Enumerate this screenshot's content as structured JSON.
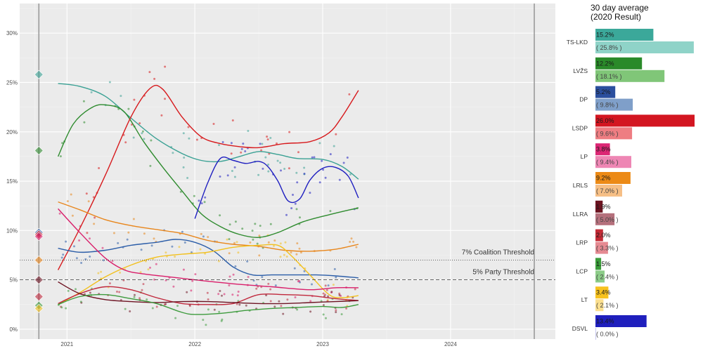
{
  "chart_data": [
    {
      "type": "scatter",
      "title": "",
      "xlabel": "",
      "ylabel": "",
      "x_ticks": [
        "2021",
        "2022",
        "2023",
        "2024"
      ],
      "xlim": [
        2020.63,
        2024.82
      ],
      "y_ticks": [
        "0%",
        "5%",
        "10%",
        "15%",
        "20%",
        "25%",
        "30%"
      ],
      "ylim": [
        -1,
        33
      ],
      "election_date": 2020.78,
      "election_results": {
        "TS-LKD": 25.8,
        "LVŽS": 18.1,
        "DP": 9.8,
        "LSDP": 9.6,
        "LP": 9.4,
        "LRLS": 7.0,
        "LLRA": 5.0,
        "LRP": 3.3,
        "LCP": 2.4,
        "LT": 2.1
      },
      "thresholds": [
        {
          "label": "7% Coalition Threshold",
          "value": 7,
          "style": "dotted"
        },
        {
          "label": "5% Party Threshold",
          "value": 5,
          "style": "dashed"
        }
      ],
      "series": [
        {
          "name": "TS-LKD",
          "color": "#3aa194",
          "points": [
            [
              2020.93,
              24.9
            ],
            [
              2021.1,
              24.6
            ],
            [
              2021.3,
              23.6
            ],
            [
              2021.5,
              21.4
            ],
            [
              2021.7,
              19.3
            ],
            [
              2021.9,
              17.8
            ],
            [
              2022.05,
              17.1
            ],
            [
              2022.2,
              17.0
            ],
            [
              2022.35,
              17.5
            ],
            [
              2022.5,
              18.0
            ],
            [
              2022.65,
              17.7
            ],
            [
              2022.8,
              17.3
            ],
            [
              2023.0,
              17.2
            ],
            [
              2023.15,
              16.5
            ],
            [
              2023.28,
              15.2
            ]
          ]
        },
        {
          "name": "LVŽS",
          "color": "#2e8b2e",
          "points": [
            [
              2020.93,
              17.5
            ],
            [
              2021.05,
              20.8
            ],
            [
              2021.2,
              22.5
            ],
            [
              2021.32,
              22.7
            ],
            [
              2021.45,
              22.0
            ],
            [
              2021.6,
              19.0
            ],
            [
              2021.75,
              16.4
            ],
            [
              2021.9,
              14.0
            ],
            [
              2022.05,
              11.7
            ],
            [
              2022.2,
              10.4
            ],
            [
              2022.35,
              9.6
            ],
            [
              2022.5,
              9.3
            ],
            [
              2022.65,
              9.8
            ],
            [
              2022.85,
              10.9
            ],
            [
              2023.05,
              11.6
            ],
            [
              2023.28,
              12.3
            ]
          ]
        },
        {
          "name": "LSDP",
          "color": "#d7191c",
          "points": [
            [
              2020.93,
              6.0
            ],
            [
              2021.1,
              10.2
            ],
            [
              2021.3,
              15.6
            ],
            [
              2021.5,
              21.5
            ],
            [
              2021.65,
              24.4
            ],
            [
              2021.75,
              24.3
            ],
            [
              2021.9,
              21.5
            ],
            [
              2022.05,
              19.5
            ],
            [
              2022.2,
              18.8
            ],
            [
              2022.35,
              18.5
            ],
            [
              2022.5,
              18.4
            ],
            [
              2022.7,
              18.8
            ],
            [
              2022.9,
              19.0
            ],
            [
              2023.05,
              19.9
            ],
            [
              2023.15,
              21.5
            ],
            [
              2023.28,
              24.2
            ]
          ]
        },
        {
          "name": "DSVL",
          "color": "#1f1fc0",
          "points": [
            [
              2022.0,
              11.2
            ],
            [
              2022.1,
              14.8
            ],
            [
              2022.2,
              17.3
            ],
            [
              2022.3,
              17.1
            ],
            [
              2022.4,
              16.8
            ],
            [
              2022.5,
              17.0
            ],
            [
              2022.57,
              16.5
            ],
            [
              2022.65,
              15.0
            ],
            [
              2022.73,
              13.0
            ],
            [
              2022.82,
              13.2
            ],
            [
              2022.9,
              15.1
            ],
            [
              2023.0,
              16.3
            ],
            [
              2023.1,
              16.4
            ],
            [
              2023.2,
              15.5
            ],
            [
              2023.28,
              13.3
            ]
          ]
        },
        {
          "name": "LRLS",
          "color": "#e8861c",
          "points": [
            [
              2020.93,
              12.9
            ],
            [
              2021.1,
              12.1
            ],
            [
              2021.3,
              11.1
            ],
            [
              2021.5,
              10.5
            ],
            [
              2021.7,
              10.1
            ],
            [
              2021.9,
              9.7
            ],
            [
              2022.1,
              9.0
            ],
            [
              2022.3,
              8.6
            ],
            [
              2022.5,
              8.4
            ],
            [
              2022.7,
              8.0
            ],
            [
              2022.9,
              7.9
            ],
            [
              2023.1,
              8.1
            ],
            [
              2023.28,
              8.6
            ]
          ]
        },
        {
          "name": "DP",
          "color": "#2b5da8",
          "points": [
            [
              2020.93,
              8.2
            ],
            [
              2021.1,
              7.8
            ],
            [
              2021.3,
              8.0
            ],
            [
              2021.5,
              8.5
            ],
            [
              2021.7,
              8.8
            ],
            [
              2021.85,
              9.1
            ],
            [
              2022.0,
              8.8
            ],
            [
              2022.15,
              7.9
            ],
            [
              2022.3,
              6.3
            ],
            [
              2022.45,
              5.5
            ],
            [
              2022.6,
              5.5
            ],
            [
              2022.75,
              5.5
            ],
            [
              2022.95,
              5.5
            ],
            [
              2023.1,
              5.4
            ],
            [
              2023.28,
              5.2
            ]
          ]
        },
        {
          "name": "LT",
          "color": "#f2c01e",
          "points": [
            [
              2020.93,
              2.5
            ],
            [
              2021.1,
              3.7
            ],
            [
              2021.3,
              5.3
            ],
            [
              2021.5,
              6.5
            ],
            [
              2021.7,
              7.3
            ],
            [
              2021.9,
              7.6
            ],
            [
              2022.1,
              7.8
            ],
            [
              2022.3,
              8.3
            ],
            [
              2022.5,
              8.5
            ],
            [
              2022.65,
              8.5
            ],
            [
              2022.75,
              7.5
            ],
            [
              2022.9,
              5.5
            ],
            [
              2023.05,
              3.5
            ],
            [
              2023.15,
              3.2
            ],
            [
              2023.28,
              3.4
            ]
          ]
        },
        {
          "name": "LP",
          "color": "#d91e6a",
          "points": [
            [
              2020.93,
              12.2
            ],
            [
              2021.1,
              9.8
            ],
            [
              2021.3,
              7.2
            ],
            [
              2021.45,
              6.0
            ],
            [
              2021.6,
              5.6
            ],
            [
              2021.8,
              5.3
            ],
            [
              2022.0,
              5.0
            ],
            [
              2022.3,
              4.6
            ],
            [
              2022.6,
              4.3
            ],
            [
              2022.9,
              4.0
            ],
            [
              2023.1,
              4.2
            ],
            [
              2023.28,
              4.2
            ]
          ]
        },
        {
          "name": "LRP",
          "color": "#c0283c",
          "points": [
            [
              2020.93,
              2.6
            ],
            [
              2021.1,
              3.6
            ],
            [
              2021.3,
              4.3
            ],
            [
              2021.5,
              4.0
            ],
            [
              2021.7,
              3.2
            ],
            [
              2021.9,
              2.6
            ],
            [
              2022.1,
              2.5
            ],
            [
              2022.3,
              2.6
            ],
            [
              2022.5,
              3.5
            ],
            [
              2022.7,
              3.5
            ],
            [
              2022.9,
              3.4
            ],
            [
              2023.1,
              3.1
            ],
            [
              2023.28,
              2.9
            ]
          ]
        },
        {
          "name": "LLRA",
          "color": "#6e1423",
          "points": [
            [
              2020.93,
              4.8
            ],
            [
              2021.1,
              3.6
            ],
            [
              2021.3,
              3.0
            ],
            [
              2021.5,
              2.8
            ],
            [
              2021.7,
              2.7
            ],
            [
              2021.9,
              2.8
            ],
            [
              2022.1,
              2.8
            ],
            [
              2022.3,
              2.7
            ],
            [
              2022.5,
              2.6
            ],
            [
              2022.7,
              2.6
            ],
            [
              2022.9,
              2.7
            ],
            [
              2023.1,
              2.8
            ],
            [
              2023.28,
              2.9
            ]
          ]
        },
        {
          "name": "LCP",
          "color": "#3d9b3d",
          "points": [
            [
              2020.93,
              2.5
            ],
            [
              2021.1,
              3.3
            ],
            [
              2021.3,
              3.5
            ],
            [
              2021.5,
              3.1
            ],
            [
              2021.7,
              2.6
            ],
            [
              2021.9,
              1.7
            ],
            [
              2022.0,
              1.5
            ],
            [
              2022.2,
              1.6
            ],
            [
              2022.4,
              1.9
            ],
            [
              2022.6,
              2.1
            ],
            [
              2022.8,
              2.2
            ],
            [
              2023.0,
              2.3
            ],
            [
              2023.15,
              2.2
            ],
            [
              2023.28,
              2.5
            ]
          ]
        }
      ]
    },
    {
      "type": "bar",
      "title": "30 day average",
      "subtitle": "(2020 Result)",
      "categories": [
        "TS-LKD",
        "LVŽS",
        "DP",
        "LSDP",
        "LP",
        "LRLS",
        "LLRA",
        "LRP",
        "LCP",
        "LT",
        "DSVL"
      ],
      "xlim": [
        0,
        26
      ],
      "series": [
        {
          "name": "30 day average",
          "values": [
            15.2,
            12.2,
            5.2,
            26.0,
            3.8,
            9.2,
            1.9,
            2.0,
            1.5,
            3.4,
            13.4
          ],
          "labels": [
            "15.2%",
            "12.2%",
            "5.2%",
            "26.0%",
            "3.8%",
            "9.2%",
            "1.9%",
            "2.0%",
            "1.5%",
            "3.4%",
            "13.4%"
          ],
          "colors": [
            "#3ba89a",
            "#2a8a2a",
            "#2b4f9e",
            "#d31621",
            "#dc2674",
            "#ec8a16",
            "#6b1320",
            "#c32a35",
            "#3a9c3a",
            "#f7c21e",
            "#1f1fbd"
          ]
        },
        {
          "name": "2020 Result",
          "values": [
            25.8,
            18.1,
            9.8,
            9.6,
            9.4,
            7.0,
            5.0,
            3.3,
            2.4,
            2.1,
            0.0
          ],
          "labels": [
            "( 25.8% )",
            "( 18.1% )",
            "( 9.8% )",
            "( 9.6% )",
            "( 9.4% )",
            "( 7.0% )",
            "( 5.0% )",
            "( 3.3% )",
            "( 2.4% )",
            "( 2.1% )",
            "( 0.0% )"
          ],
          "colors": [
            "#8fd3c8",
            "#80c678",
            "#7f9fc9",
            "#ee7d82",
            "#ee86b4",
            "#f6bf86",
            "#b5707c",
            "#e58a92",
            "#8ccc88",
            "#fbdf8e",
            "#9090e0"
          ]
        }
      ]
    }
  ]
}
